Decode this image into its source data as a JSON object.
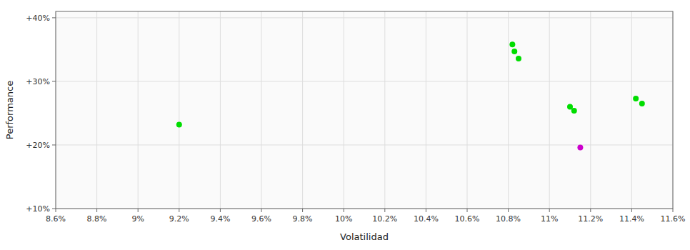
{
  "chart_data": {
    "type": "scatter",
    "xlabel": "Volatilidad",
    "ylabel": "Performance",
    "xlim": [
      0.086,
      0.116
    ],
    "ylim": [
      0.1,
      0.41
    ],
    "xticks": [
      {
        "value": 0.086,
        "label": "8.6%"
      },
      {
        "value": 0.088,
        "label": "8.8%"
      },
      {
        "value": 0.09,
        "label": "9%"
      },
      {
        "value": 0.092,
        "label": "9.2%"
      },
      {
        "value": 0.094,
        "label": "9.4%"
      },
      {
        "value": 0.096,
        "label": "9.6%"
      },
      {
        "value": 0.098,
        "label": "9.8%"
      },
      {
        "value": 0.1,
        "label": "10%"
      },
      {
        "value": 0.102,
        "label": "10.2%"
      },
      {
        "value": 0.104,
        "label": "10.4%"
      },
      {
        "value": 0.106,
        "label": "10.6%"
      },
      {
        "value": 0.108,
        "label": "10.8%"
      },
      {
        "value": 0.11,
        "label": "11%"
      },
      {
        "value": 0.112,
        "label": "11.2%"
      },
      {
        "value": 0.114,
        "label": "11.4%"
      },
      {
        "value": 0.116,
        "label": "11.6%"
      }
    ],
    "yticks": [
      {
        "value": 0.1,
        "label": "+10%"
      },
      {
        "value": 0.2,
        "label": "+20%"
      },
      {
        "value": 0.3,
        "label": "+30%"
      },
      {
        "value": 0.4,
        "label": "+40%"
      }
    ],
    "grid": true,
    "series": [
      {
        "color": "#00dd00",
        "x": [
          0.092,
          0.1082,
          0.1083,
          0.1085,
          0.111,
          0.1112,
          0.1142,
          0.1145
        ],
        "values": [
          0.232,
          0.358,
          0.347,
          0.336,
          0.26,
          0.254,
          0.273,
          0.265
        ]
      },
      {
        "color": "#cc00cc",
        "x": [
          0.1115
        ],
        "values": [
          0.196
        ]
      }
    ]
  }
}
